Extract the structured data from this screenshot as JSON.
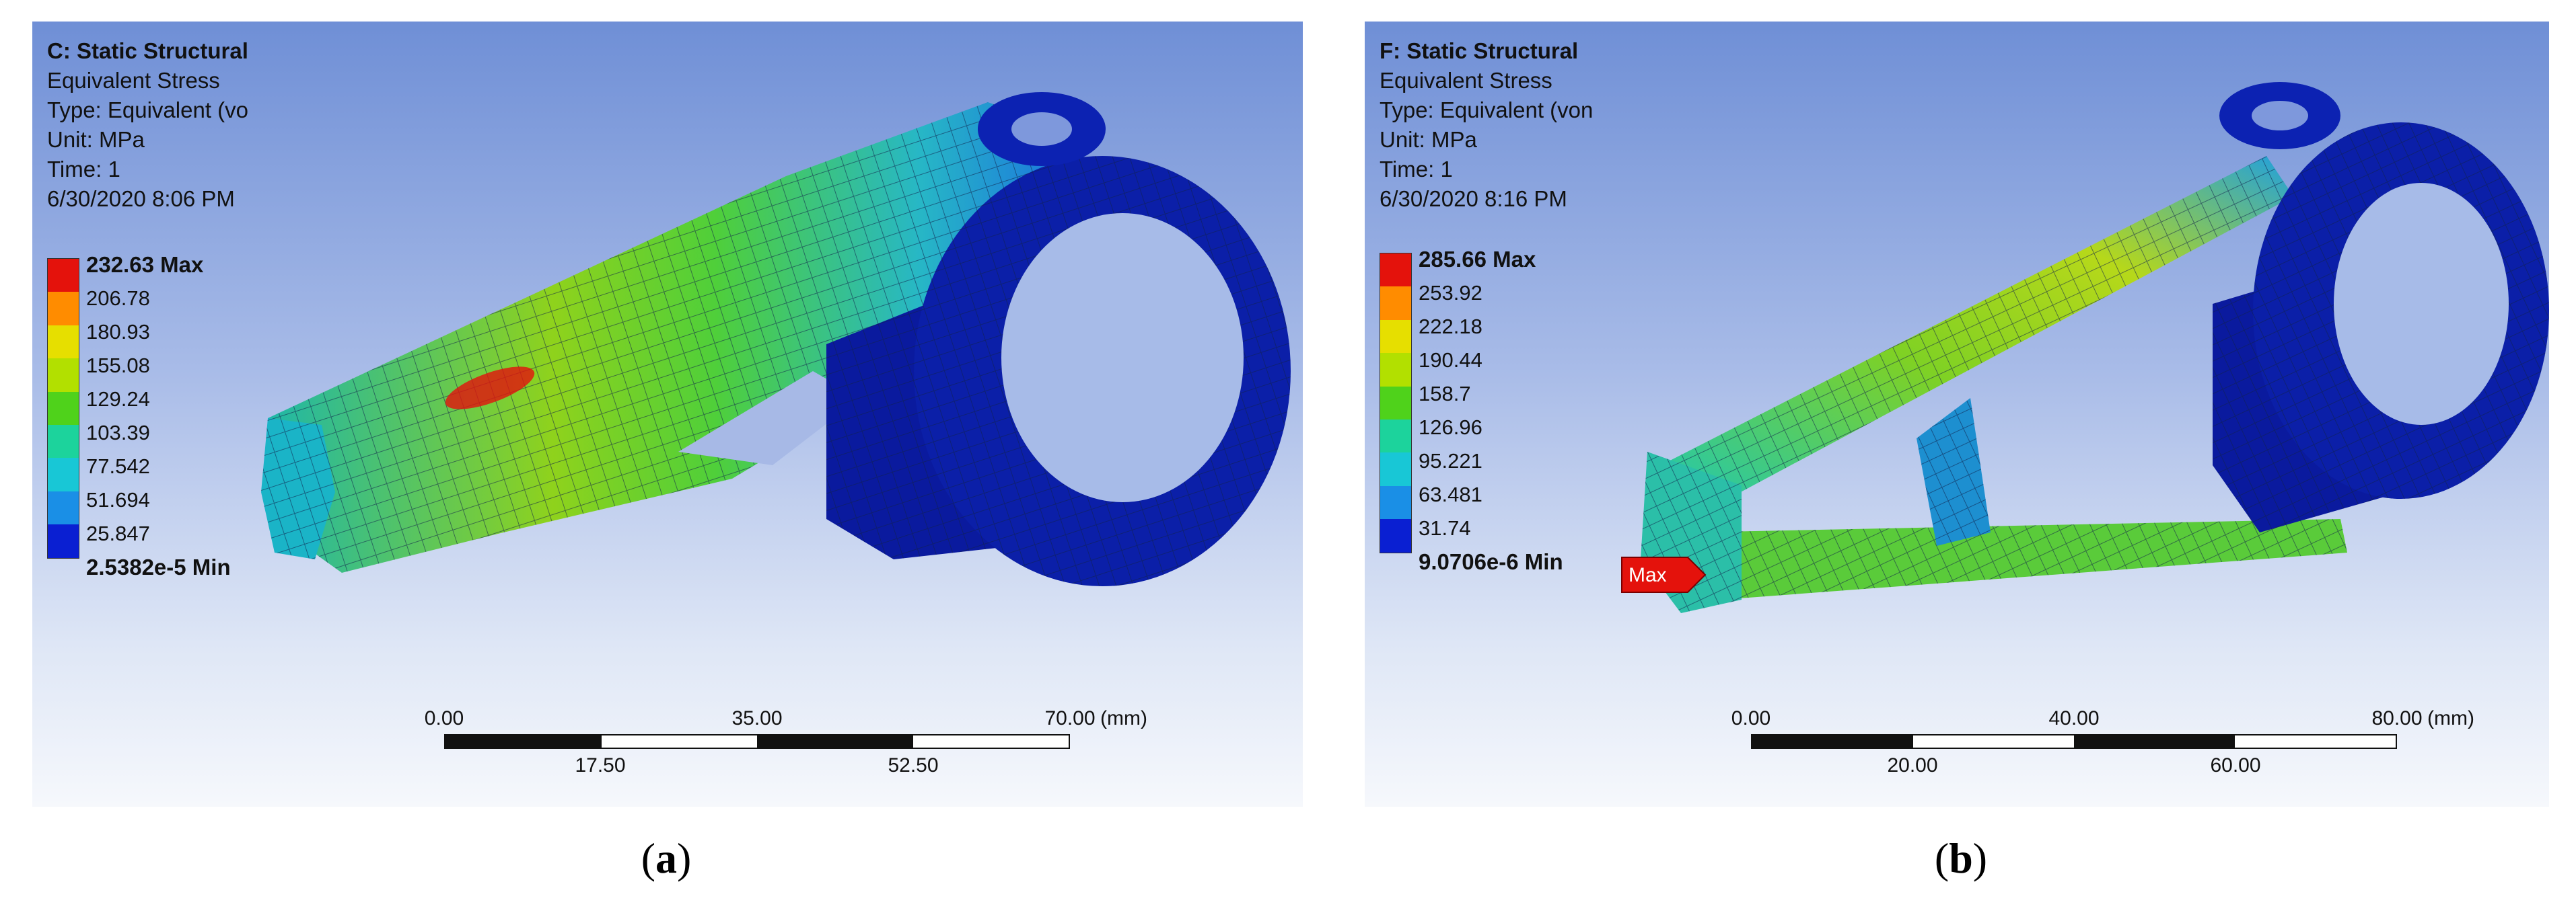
{
  "panel_a": {
    "info": [
      "C: Static Structural",
      "Equivalent Stress",
      "Type: Equivalent (vo",
      "Unit: MPa",
      "Time: 1",
      "6/30/2020 8:06 PM"
    ],
    "legend_labels": [
      "232.63 Max",
      "206.78",
      "180.93",
      "155.08",
      "129.24",
      "103.39",
      "77.542",
      "51.694",
      "25.847",
      "2.5382e-5 Min"
    ],
    "scale": {
      "top_labels": [
        "0.00",
        "35.00",
        "70.00"
      ],
      "unit": "(mm)",
      "bottom_labels": [
        "17.50",
        "52.50"
      ]
    },
    "caption_letter": "a"
  },
  "panel_b": {
    "info": [
      "F: Static Structural",
      "Equivalent Stress",
      "Type: Equivalent (von",
      "Unit: MPa",
      "Time: 1",
      "6/30/2020 8:16 PM"
    ],
    "legend_labels": [
      "285.66 Max",
      "253.92",
      "222.18",
      "190.44",
      "158.7",
      "126.96",
      "95.221",
      "63.481",
      "31.74",
      "9.0706e-6 Min"
    ],
    "scale": {
      "top_labels": [
        "0.00",
        "40.00",
        "80.00"
      ],
      "unit": "(mm)",
      "bottom_labels": [
        "20.00",
        "60.00"
      ]
    },
    "max_flag": "Max",
    "caption_letter": "b"
  },
  "legend_colors": [
    "#e4120c",
    "#ff8c00",
    "#e6df00",
    "#b2e000",
    "#4fd21b",
    "#1cd39c",
    "#18c7d6",
    "#1a8fe6",
    "#0a1fd2"
  ],
  "caption_paren_open": "(",
  "caption_paren_close": ")"
}
